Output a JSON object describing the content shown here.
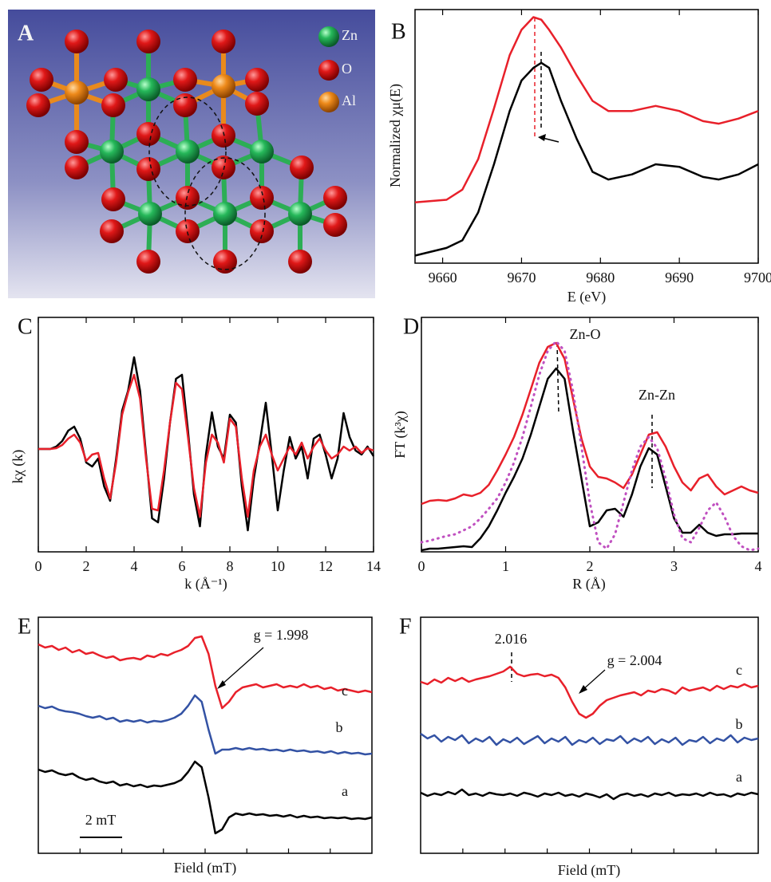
{
  "panel_a": {
    "label": "A",
    "legend": [
      "Zn",
      "O",
      "Al"
    ]
  },
  "chart_data": [
    {
      "type": "line",
      "panel_label": "B",
      "xlabel": "E (eV)",
      "ylabel": "Normalized χμ(E)",
      "x": [
        9656.5,
        9660.5,
        9662.5,
        9664.5,
        9666.5,
        9668.5,
        9670,
        9671.5,
        9672.5,
        9673.5,
        9675,
        9677,
        9679,
        9681,
        9684,
        9687,
        9690,
        9693,
        9695,
        9697.5,
        9700
      ],
      "xlim": [
        9656.5,
        9700
      ],
      "xticks": [
        9660,
        9670,
        9680,
        9690,
        9700
      ],
      "ylim": [
        0,
        1
      ],
      "series": [
        {
          "color": "#e8202a",
          "values": [
            0.24,
            0.25,
            0.29,
            0.41,
            0.61,
            0.82,
            0.92,
            0.97,
            0.96,
            0.92,
            0.85,
            0.74,
            0.64,
            0.6,
            0.6,
            0.62,
            0.6,
            0.56,
            0.55,
            0.57,
            0.6
          ]
        },
        {
          "color": "#000000",
          "values": [
            0.03,
            0.06,
            0.09,
            0.2,
            0.39,
            0.6,
            0.72,
            0.77,
            0.79,
            0.77,
            0.64,
            0.49,
            0.36,
            0.33,
            0.35,
            0.39,
            0.38,
            0.34,
            0.33,
            0.35,
            0.39
          ]
        }
      ]
    },
    {
      "type": "line",
      "panel_label": "C",
      "xlabel": "k (Å⁻¹)",
      "ylabel": "kχ (k)",
      "x": [
        0,
        0.25,
        0.5,
        0.75,
        1,
        1.25,
        1.5,
        1.75,
        2,
        2.25,
        2.5,
        2.75,
        3,
        3.25,
        3.5,
        3.75,
        4,
        4.25,
        4.5,
        4.75,
        5,
        5.25,
        5.5,
        5.75,
        6,
        6.25,
        6.5,
        6.75,
        7,
        7.25,
        7.5,
        7.75,
        8,
        8.25,
        8.5,
        8.75,
        9,
        9.25,
        9.5,
        9.75,
        10,
        10.25,
        10.5,
        10.75,
        11,
        11.25,
        11.5,
        11.75,
        12,
        12.25,
        12.5,
        12.75,
        13,
        13.25,
        13.5,
        13.75,
        14
      ],
      "xlim": [
        0,
        14
      ],
      "xticks": [
        0,
        2,
        4,
        6,
        8,
        10,
        12,
        14
      ],
      "ylim": [
        0,
        294
      ],
      "series": [
        {
          "color": "#000000",
          "values": [
            129,
            129,
            129,
            132,
            139,
            152,
            157,
            142,
            112,
            107,
            117,
            82,
            64,
            117,
            177,
            202,
            244,
            202,
            122,
            42,
            37,
            92,
            162,
            217,
            222,
            152,
            72,
            32,
            122,
            175,
            132,
            117,
            172,
            162,
            82,
            27,
            92,
            137,
            187,
            122,
            52,
            102,
            144,
            117,
            132,
            92,
            142,
            147,
            122,
            92,
            117,
            174,
            144,
            127,
            122,
            132,
            120
          ]
        },
        {
          "color": "#e8202a",
          "values": [
            129,
            129,
            129,
            130,
            134,
            142,
            147,
            137,
            114,
            122,
            124,
            92,
            67,
            112,
            172,
            200,
            222,
            192,
            117,
            54,
            52,
            102,
            162,
            212,
            204,
            144,
            80,
            44,
            112,
            147,
            137,
            112,
            167,
            157,
            92,
            44,
            102,
            132,
            147,
            122,
            102,
            117,
            132,
            122,
            137,
            117,
            132,
            142,
            127,
            117,
            122,
            132,
            127,
            132,
            124,
            130,
            127
          ]
        }
      ]
    },
    {
      "type": "line",
      "panel_label": "D",
      "xlabel": "R (Å)",
      "ylabel": "FT (k³χ)",
      "annotations": [
        "Zn-O",
        "Zn-Zn"
      ],
      "x": [
        0,
        0.1,
        0.2,
        0.3,
        0.4,
        0.5,
        0.6,
        0.7,
        0.8,
        0.9,
        1,
        1.1,
        1.2,
        1.3,
        1.4,
        1.5,
        1.6,
        1.7,
        1.8,
        1.9,
        2,
        2.1,
        2.2,
        2.3,
        2.4,
        2.5,
        2.6,
        2.7,
        2.8,
        2.9,
        3,
        3.1,
        3.2,
        3.3,
        3.4,
        3.5,
        3.6,
        3.7,
        3.8,
        3.9,
        4
      ],
      "xlim": [
        0,
        4
      ],
      "xticks": [
        0,
        1,
        2,
        3,
        4
      ],
      "ylim": [
        0,
        294
      ],
      "series": [
        {
          "color": "#e8202a",
          "values": [
            60,
            64,
            65,
            64,
            67,
            72,
            70,
            74,
            84,
            102,
            122,
            144,
            172,
            204,
            237,
            257,
            262,
            242,
            192,
            142,
            107,
            94,
            92,
            87,
            80,
            97,
            122,
            147,
            150,
            132,
            107,
            87,
            77,
            92,
            97,
            82,
            72,
            77,
            82,
            77,
            74
          ]
        },
        {
          "color": "#000000",
          "values": [
            2,
            4,
            4,
            5,
            6,
            7,
            6,
            17,
            32,
            52,
            74,
            94,
            117,
            147,
            182,
            217,
            230,
            217,
            152,
            92,
            32,
            37,
            52,
            54,
            44,
            72,
            107,
            130,
            122,
            82,
            42,
            24,
            24,
            34,
            24,
            20,
            22,
            22,
            23,
            23,
            23
          ]
        },
        {
          "color": "#c050c0",
          "style": "dotted",
          "values": [
            12,
            14,
            17,
            20,
            22,
            27,
            32,
            42,
            54,
            67,
            87,
            112,
            144,
            182,
            222,
            252,
            264,
            252,
            202,
            132,
            62,
            12,
            4,
            22,
            62,
            102,
            132,
            144,
            130,
            92,
            47,
            17,
            12,
            30,
            52,
            62,
            44,
            20,
            7,
            2,
            4
          ]
        }
      ]
    },
    {
      "type": "line",
      "panel_label": "E",
      "xlabel": "Field (mT)",
      "annotations": [
        "g = 1.998",
        "2 mT"
      ],
      "ylim": [
        0,
        296
      ],
      "series": [
        {
          "name": "c",
          "color": "#e8202a",
          "values": [
            262,
            258,
            260,
            255,
            258,
            252,
            255,
            250,
            252,
            248,
            245,
            247,
            242,
            244,
            245,
            243,
            248,
            246,
            250,
            248,
            252,
            255,
            260,
            270,
            272,
            250,
            210,
            182,
            190,
            202,
            208,
            210,
            212,
            208,
            210,
            212,
            208,
            210,
            208,
            212,
            208,
            210,
            206,
            208,
            204,
            206,
            204,
            202,
            204,
            202
          ]
        },
        {
          "name": "b",
          "color": "#3352a4",
          "values": [
            185,
            182,
            184,
            180,
            178,
            177,
            175,
            172,
            170,
            172,
            168,
            170,
            165,
            167,
            165,
            167,
            164,
            166,
            165,
            167,
            170,
            175,
            185,
            198,
            190,
            155,
            125,
            130,
            130,
            132,
            130,
            132,
            130,
            131,
            129,
            130,
            128,
            130,
            128,
            129,
            127,
            128,
            126,
            128,
            125,
            127,
            125,
            126,
            124,
            125
          ]
        },
        {
          "name": "a",
          "color": "#000000",
          "values": [
            105,
            102,
            104,
            100,
            98,
            100,
            95,
            92,
            94,
            90,
            88,
            90,
            85,
            87,
            84,
            86,
            83,
            85,
            84,
            86,
            88,
            92,
            102,
            115,
            108,
            70,
            25,
            30,
            45,
            50,
            48,
            50,
            48,
            49,
            47,
            48,
            46,
            48,
            45,
            47,
            45,
            46,
            44,
            45,
            44,
            45,
            43,
            44,
            43,
            45
          ]
        }
      ]
    },
    {
      "type": "line",
      "panel_label": "F",
      "xlabel": "Field (mT)",
      "annotations": [
        "2.016",
        "g = 2.004"
      ],
      "ylim": [
        0,
        296
      ],
      "series": [
        {
          "name": "c",
          "color": "#e8202a",
          "values": [
            215,
            212,
            218,
            214,
            220,
            216,
            220,
            215,
            218,
            220,
            222,
            225,
            228,
            234,
            225,
            222,
            224,
            225,
            222,
            224,
            220,
            208,
            190,
            175,
            170,
            175,
            185,
            192,
            195,
            198,
            200,
            202,
            198,
            204,
            202,
            206,
            204,
            200,
            208,
            204,
            206,
            208,
            204,
            210,
            206,
            210,
            208,
            212,
            208,
            210
          ]
        },
        {
          "name": "b",
          "color": "#3352a4",
          "values": [
            150,
            144,
            148,
            140,
            146,
            142,
            148,
            138,
            144,
            140,
            146,
            136,
            143,
            139,
            145,
            137,
            142,
            147,
            138,
            144,
            140,
            146,
            136,
            142,
            139,
            145,
            137,
            143,
            141,
            147,
            138,
            144,
            140,
            146,
            137,
            143,
            139,
            145,
            136,
            142,
            140,
            146,
            138,
            144,
            141,
            148,
            139,
            145,
            142,
            144
          ]
        },
        {
          "name": "a",
          "color": "#000000",
          "values": [
            76,
            72,
            75,
            73,
            77,
            74,
            80,
            73,
            75,
            72,
            76,
            74,
            73,
            75,
            72,
            76,
            74,
            71,
            75,
            73,
            76,
            72,
            74,
            71,
            75,
            73,
            70,
            74,
            68,
            73,
            75,
            72,
            74,
            71,
            75,
            73,
            76,
            72,
            74,
            73,
            75,
            72,
            76,
            73,
            74,
            71,
            75,
            73,
            76,
            74
          ]
        }
      ]
    }
  ]
}
